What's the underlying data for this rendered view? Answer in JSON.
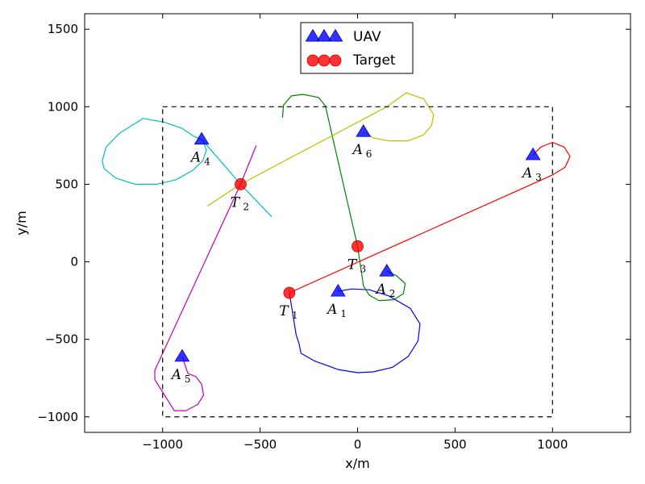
{
  "chart_data": {
    "type": "line",
    "xlabel": "x/m",
    "ylabel": "y/m",
    "xlim": [
      -1400,
      1400
    ],
    "ylim": [
      -1100,
      1600
    ],
    "xticks": [
      -1000,
      -500,
      0,
      500,
      1000
    ],
    "yticks": [
      -1000,
      -500,
      0,
      500,
      1000,
      1500
    ],
    "tick_labels_x": [
      "−1000",
      "−500",
      "0",
      "500",
      "1000"
    ],
    "tick_labels_y": [
      "−1000",
      "−500",
      "0",
      "500",
      "1000",
      "1500"
    ],
    "grid": false,
    "legend_position": "top-center",
    "legend": [
      {
        "label": "UAV",
        "marker": "triangle",
        "color": "#0000ff"
      },
      {
        "label": "Target",
        "marker": "circle",
        "color": "#ff0000"
      }
    ],
    "boundary": {
      "x": [
        -1000,
        1000
      ],
      "y": [
        -1000,
        1000
      ],
      "style": "dashed",
      "color": "#000000"
    },
    "uavs": [
      {
        "name": "A",
        "sub": "1",
        "x": -100,
        "y": -190
      },
      {
        "name": "A",
        "sub": "2",
        "x": 150,
        "y": -60
      },
      {
        "name": "A",
        "sub": "3",
        "x": 900,
        "y": 690
      },
      {
        "name": "A",
        "sub": "4",
        "x": -800,
        "y": 790
      },
      {
        "name": "A",
        "sub": "5",
        "x": -900,
        "y": -610
      },
      {
        "name": "A",
        "sub": "6",
        "x": 30,
        "y": 840
      }
    ],
    "targets": [
      {
        "name": "T",
        "sub": "1",
        "x": -350,
        "y": -200
      },
      {
        "name": "T",
        "sub": "2",
        "x": -600,
        "y": 500
      },
      {
        "name": "T",
        "sub": "3",
        "x": 0,
        "y": 100
      }
    ],
    "paths": [
      {
        "color": "#0000ff",
        "points": [
          [
            -100,
            -190
          ],
          [
            -30,
            -175
          ],
          [
            60,
            -180
          ],
          [
            160,
            -220
          ],
          [
            270,
            -300
          ],
          [
            320,
            -400
          ],
          [
            310,
            -510
          ],
          [
            260,
            -610
          ],
          [
            180,
            -680
          ],
          [
            80,
            -710
          ],
          [
            0,
            -715
          ],
          [
            -100,
            -695
          ],
          [
            -220,
            -640
          ],
          [
            -290,
            -590
          ],
          [
            -300,
            -530
          ],
          [
            -315,
            -470
          ],
          [
            -350,
            -200
          ]
        ]
      },
      {
        "color": "#008000",
        "points": [
          [
            150,
            -60
          ],
          [
            200,
            -90
          ],
          [
            245,
            -140
          ],
          [
            235,
            -205
          ],
          [
            185,
            -245
          ],
          [
            110,
            -250
          ],
          [
            60,
            -215
          ],
          [
            30,
            -155
          ],
          [
            0,
            100
          ],
          [
            -165,
            1005
          ],
          [
            -200,
            1060
          ],
          [
            -280,
            1080
          ],
          [
            -340,
            1070
          ],
          [
            -380,
            1010
          ],
          [
            -385,
            930
          ]
        ]
      },
      {
        "color": "#ff0000",
        "points": [
          [
            -350,
            -200
          ],
          [
            1000,
            560
          ],
          [
            1065,
            610
          ],
          [
            1090,
            680
          ],
          [
            1060,
            740
          ],
          [
            1000,
            770
          ],
          [
            940,
            740
          ],
          [
            900,
            690
          ]
        ]
      },
      {
        "color": "#00bfbf",
        "points": [
          [
            -800,
            790
          ],
          [
            -790,
            770
          ],
          [
            -775,
            720
          ],
          [
            -795,
            650
          ],
          [
            -845,
            590
          ],
          [
            -930,
            530
          ],
          [
            -1030,
            500
          ],
          [
            -1140,
            500
          ],
          [
            -1240,
            540
          ],
          [
            -1300,
            600
          ],
          [
            -1310,
            650
          ],
          [
            -1290,
            740
          ],
          [
            -1220,
            830
          ],
          [
            -1100,
            925
          ],
          [
            -990,
            900
          ],
          [
            -900,
            860
          ],
          [
            -840,
            810
          ],
          [
            -800,
            790
          ],
          [
            -600,
            500
          ],
          [
            -440,
            290
          ]
        ]
      },
      {
        "color": "#bf00bf",
        "points": [
          [
            -520,
            750
          ],
          [
            -600,
            500
          ],
          [
            -1040,
            -700
          ],
          [
            -1040,
            -760
          ],
          [
            -1000,
            -840
          ],
          [
            -940,
            -960
          ],
          [
            -880,
            -960
          ],
          [
            -820,
            -920
          ],
          [
            -790,
            -860
          ],
          [
            -800,
            -790
          ],
          [
            -830,
            -740
          ],
          [
            -870,
            -720
          ],
          [
            -900,
            -610
          ]
        ]
      },
      {
        "color": "#bfbf00",
        "points": [
          [
            -770,
            360
          ],
          [
            -600,
            500
          ],
          [
            150,
            1000
          ],
          [
            250,
            1090
          ],
          [
            340,
            1050
          ],
          [
            390,
            950
          ],
          [
            380,
            880
          ],
          [
            340,
            820
          ],
          [
            260,
            780
          ],
          [
            160,
            780
          ],
          [
            80,
            800
          ],
          [
            30,
            840
          ]
        ]
      }
    ],
    "title": ""
  }
}
